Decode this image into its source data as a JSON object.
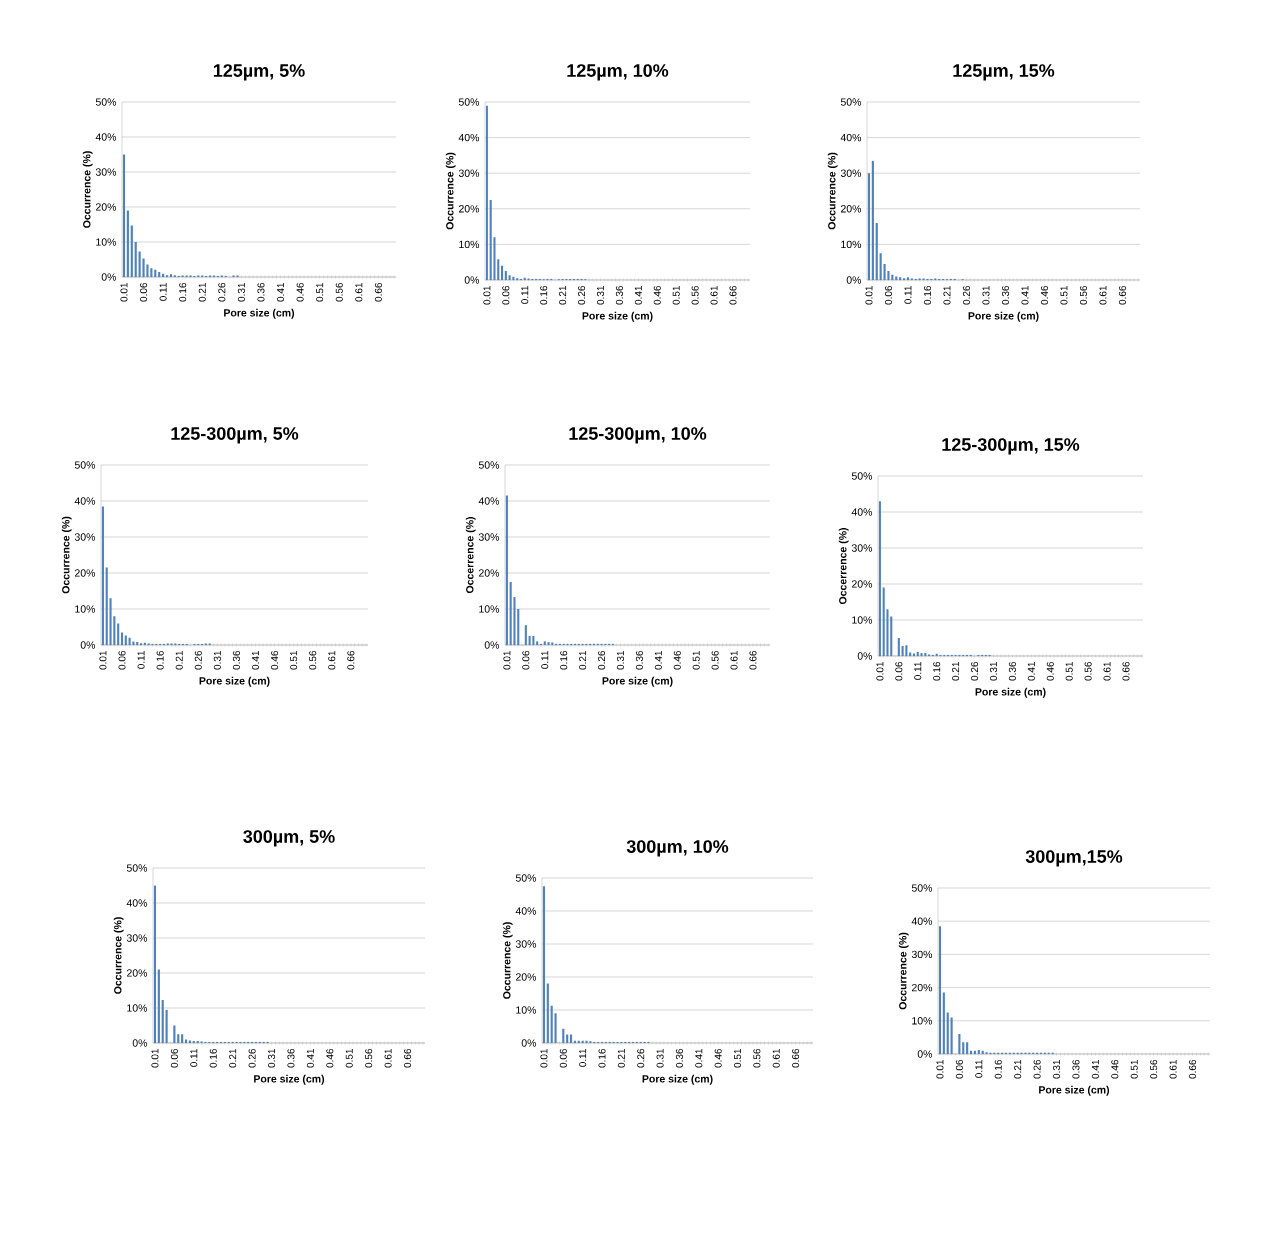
{
  "chart_data": [
    {
      "type": "bar",
      "title": "125µm, 5%",
      "xlabel": "Pore size (cm)",
      "ylabel": "Occurrence (%)",
      "color": "#4f81bd",
      "grid": "y",
      "ylim": [
        0,
        50
      ],
      "yticks": [
        {
          "value": 0,
          "label": "0%"
        },
        {
          "value": 10,
          "label": "10%"
        },
        {
          "value": 20,
          "label": "20%"
        },
        {
          "value": 30,
          "label": "30%"
        },
        {
          "value": 40,
          "label": "40%"
        },
        {
          "value": 50,
          "label": "50%"
        }
      ],
      "categories": [
        "0.01",
        null,
        null,
        null,
        null,
        "0.06",
        null,
        null,
        null,
        null,
        "0.11",
        null,
        null,
        null,
        null,
        "0.16",
        null,
        null,
        null,
        null,
        "0.21",
        null,
        null,
        null,
        null,
        "0.26",
        null,
        null,
        null,
        null,
        "0.31",
        null,
        null,
        null,
        null,
        "0.36",
        null,
        null,
        null,
        null,
        "0.41",
        null,
        null,
        null,
        null,
        "0.46",
        null,
        null,
        null,
        null,
        "0.51",
        null,
        null,
        null,
        null,
        "0.56",
        null,
        null,
        null,
        null,
        "0.61",
        null,
        null,
        null,
        null,
        "0.66",
        null,
        null,
        null,
        null
      ],
      "values": [
        35,
        19,
        14.7,
        10,
        7.3,
        5.3,
        3.6,
        2.5,
        2.1,
        1.4,
        0.9,
        0.5,
        0.8,
        0.5,
        0.3,
        0.4,
        0.4,
        0.4,
        0.3,
        0.4,
        0.4,
        0.3,
        0.4,
        0.4,
        0.3,
        0.4,
        0.3,
        0,
        0.4,
        0.4,
        0,
        0,
        0,
        0,
        0,
        0,
        0,
        0,
        0,
        0,
        0,
        0,
        0,
        0,
        0,
        0,
        0,
        0,
        0,
        0,
        0,
        0,
        0,
        0,
        0,
        0,
        0,
        0,
        0,
        0,
        0,
        0,
        0,
        0,
        0,
        0,
        0,
        0,
        0,
        0
      ]
    },
    {
      "type": "bar",
      "title": "125µm, 10%",
      "xlabel": "Pore size (cm)",
      "ylabel": "Occurrence (%)",
      "color": "#4f81bd",
      "grid": "y",
      "ylim": [
        0,
        50
      ],
      "yticks": [
        {
          "value": 0,
          "label": "0%"
        },
        {
          "value": 10,
          "label": "10%"
        },
        {
          "value": 20,
          "label": "20%"
        },
        {
          "value": 30,
          "label": "30%"
        },
        {
          "value": 40,
          "label": "40%"
        },
        {
          "value": 50,
          "label": "50%"
        }
      ],
      "categories": [
        "0.01",
        null,
        null,
        null,
        null,
        "0.06",
        null,
        null,
        null,
        null,
        "0.11",
        null,
        null,
        null,
        null,
        "0.16",
        null,
        null,
        null,
        null,
        "0.21",
        null,
        null,
        null,
        null,
        "0.26",
        null,
        null,
        null,
        null,
        "0.31",
        null,
        null,
        null,
        null,
        "0.36",
        null,
        null,
        null,
        null,
        "0.41",
        null,
        null,
        null,
        null,
        "0.46",
        null,
        null,
        null,
        null,
        "0.51",
        null,
        null,
        null,
        null,
        "0.56",
        null,
        null,
        null,
        null,
        "0.61",
        null,
        null,
        null,
        null,
        "0.66",
        null,
        null,
        null,
        null
      ],
      "values": [
        49,
        22.5,
        12,
        5.8,
        4,
        2.5,
        1.3,
        0.9,
        0.5,
        0.3,
        0.6,
        0.4,
        0.3,
        0.3,
        0.3,
        0.2,
        0.3,
        0.3,
        0,
        0.2,
        0.3,
        0.3,
        0.3,
        0.3,
        0.3,
        0.3,
        0.2,
        0,
        0,
        0,
        0,
        0,
        0,
        0,
        0,
        0,
        0,
        0,
        0,
        0,
        0,
        0,
        0,
        0,
        0,
        0,
        0,
        0,
        0,
        0,
        0,
        0,
        0,
        0,
        0,
        0,
        0,
        0,
        0,
        0,
        0,
        0,
        0,
        0,
        0,
        0,
        0,
        0,
        0,
        0
      ]
    },
    {
      "type": "bar",
      "title": "125µm, 15%",
      "xlabel": "Pore size (cm)",
      "ylabel": "Occurrence (%)",
      "color": "#4f81bd",
      "grid": "y",
      "ylim": [
        0,
        50
      ],
      "yticks": [
        {
          "value": 0,
          "label": "0%"
        },
        {
          "value": 10,
          "label": "10%"
        },
        {
          "value": 20,
          "label": "20%"
        },
        {
          "value": 30,
          "label": "30%"
        },
        {
          "value": 40,
          "label": "40%"
        },
        {
          "value": 50,
          "label": "50%"
        }
      ],
      "categories": [
        "0.01",
        null,
        null,
        null,
        null,
        "0.06",
        null,
        null,
        null,
        null,
        "0.11",
        null,
        null,
        null,
        null,
        "0.16",
        null,
        null,
        null,
        null,
        "0.21",
        null,
        null,
        null,
        null,
        "0.26",
        null,
        null,
        null,
        null,
        "0.31",
        null,
        null,
        null,
        null,
        "0.36",
        null,
        null,
        null,
        null,
        "0.41",
        null,
        null,
        null,
        null,
        "0.46",
        null,
        null,
        null,
        null,
        "0.51",
        null,
        null,
        null,
        null,
        "0.56",
        null,
        null,
        null,
        null,
        "0.61",
        null,
        null,
        null,
        null,
        "0.66",
        null,
        null,
        null,
        null
      ],
      "values": [
        30,
        33.5,
        16,
        7.5,
        4.5,
        2.5,
        1.5,
        1,
        0.8,
        0.5,
        0.8,
        0.4,
        0.3,
        0.4,
        0.4,
        0.3,
        0.3,
        0.4,
        0.3,
        0.3,
        0.2,
        0.3,
        0.3,
        0,
        0.2,
        0,
        0,
        0,
        0,
        0,
        0,
        0,
        0,
        0,
        0,
        0,
        0,
        0,
        0,
        0,
        0,
        0,
        0,
        0,
        0,
        0,
        0,
        0,
        0,
        0,
        0,
        0,
        0,
        0,
        0,
        0,
        0,
        0,
        0,
        0,
        0,
        0,
        0,
        0,
        0,
        0,
        0,
        0,
        0,
        0
      ]
    },
    {
      "type": "bar",
      "title": "125-300µm, 5%",
      "xlabel": "Pore size (cm)",
      "ylabel": "Occurrence (%)",
      "color": "#4f81bd",
      "grid": "y",
      "ylim": [
        0,
        50
      ],
      "yticks": [
        {
          "value": 0,
          "label": "0%"
        },
        {
          "value": 10,
          "label": "10%"
        },
        {
          "value": 20,
          "label": "20%"
        },
        {
          "value": 30,
          "label": "30%"
        },
        {
          "value": 40,
          "label": "40%"
        },
        {
          "value": 50,
          "label": "50%"
        }
      ],
      "categories": [
        "0.01",
        null,
        null,
        null,
        null,
        "0.06",
        null,
        null,
        null,
        null,
        "0.11",
        null,
        null,
        null,
        null,
        "0.16",
        null,
        null,
        null,
        null,
        "0.21",
        null,
        null,
        null,
        null,
        "0.26",
        null,
        null,
        null,
        null,
        "0.31",
        null,
        null,
        null,
        null,
        "0.36",
        null,
        null,
        null,
        null,
        "0.41",
        null,
        null,
        null,
        null,
        "0.46",
        null,
        null,
        null,
        null,
        "0.51",
        null,
        null,
        null,
        null,
        "0.56",
        null,
        null,
        null,
        null,
        "0.61",
        null,
        null,
        null,
        null,
        "0.66",
        null,
        null,
        null,
        null
      ],
      "values": [
        38.5,
        21.5,
        13,
        8,
        6,
        3.5,
        2.6,
        2,
        1,
        0.8,
        0.5,
        0.6,
        0.4,
        0.3,
        0.3,
        0.3,
        0.3,
        0.4,
        0.4,
        0.4,
        0.3,
        0.3,
        0.3,
        0,
        0.3,
        0.3,
        0.3,
        0.4,
        0.4,
        0,
        0,
        0,
        0,
        0,
        0,
        0,
        0,
        0,
        0,
        0,
        0,
        0,
        0,
        0,
        0,
        0,
        0,
        0,
        0,
        0,
        0,
        0,
        0,
        0,
        0,
        0,
        0,
        0,
        0,
        0,
        0,
        0,
        0,
        0,
        0,
        0,
        0,
        0,
        0,
        0
      ]
    },
    {
      "type": "bar",
      "title": "125-300µm, 10%",
      "xlabel": "Pore size (cm)",
      "ylabel": "Occerrence (%)",
      "color": "#4f81bd",
      "grid": "y",
      "ylim": [
        0,
        50
      ],
      "yticks": [
        {
          "value": 0,
          "label": "0%"
        },
        {
          "value": 10,
          "label": "10%"
        },
        {
          "value": 20,
          "label": "20%"
        },
        {
          "value": 30,
          "label": "30%"
        },
        {
          "value": 40,
          "label": "40%"
        },
        {
          "value": 50,
          "label": "50%"
        }
      ],
      "categories": [
        "0.01",
        null,
        null,
        null,
        null,
        "0.06",
        null,
        null,
        null,
        null,
        "0.11",
        null,
        null,
        null,
        null,
        "0.16",
        null,
        null,
        null,
        null,
        "0.21",
        null,
        null,
        null,
        null,
        "0.26",
        null,
        null,
        null,
        null,
        "0.31",
        null,
        null,
        null,
        null,
        "0.36",
        null,
        null,
        null,
        null,
        "0.41",
        null,
        null,
        null,
        null,
        "0.46",
        null,
        null,
        null,
        null,
        "0.51",
        null,
        null,
        null,
        null,
        "0.56",
        null,
        null,
        null,
        null,
        "0.61",
        null,
        null,
        null,
        null,
        "0.66",
        null,
        null,
        null,
        null
      ],
      "values": [
        41.5,
        17.5,
        13.3,
        10,
        0,
        5.5,
        2.5,
        2.5,
        1,
        0.3,
        1,
        0.8,
        0.7,
        0.3,
        0.3,
        0.3,
        0.3,
        0.3,
        0.3,
        0.3,
        0.3,
        0.3,
        0.3,
        0.3,
        0.3,
        0.3,
        0.3,
        0.3,
        0.3,
        0,
        0,
        0,
        0,
        0,
        0,
        0,
        0,
        0,
        0,
        0,
        0,
        0,
        0,
        0,
        0,
        0,
        0,
        0,
        0,
        0,
        0,
        0,
        0,
        0,
        0,
        0,
        0,
        0,
        0,
        0,
        0,
        0,
        0,
        0,
        0,
        0,
        0,
        0,
        0,
        0
      ]
    },
    {
      "type": "bar",
      "title": "125-300µm, 15%",
      "xlabel": "Pore size (cm)",
      "ylabel": "Occerrence (%)",
      "color": "#4f81bd",
      "grid": "y",
      "ylim": [
        0,
        50
      ],
      "yticks": [
        {
          "value": 0,
          "label": "0%"
        },
        {
          "value": 10,
          "label": "10%"
        },
        {
          "value": 20,
          "label": "20%"
        },
        {
          "value": 30,
          "label": "30%"
        },
        {
          "value": 40,
          "label": "40%"
        },
        {
          "value": 50,
          "label": "50%"
        }
      ],
      "categories": [
        "0.01",
        null,
        null,
        null,
        null,
        "0.06",
        null,
        null,
        null,
        null,
        "0.11",
        null,
        null,
        null,
        null,
        "0.16",
        null,
        null,
        null,
        null,
        "0.21",
        null,
        null,
        null,
        null,
        "0.26",
        null,
        null,
        null,
        null,
        "0.31",
        null,
        null,
        null,
        null,
        "0.36",
        null,
        null,
        null,
        null,
        "0.41",
        null,
        null,
        null,
        null,
        "0.46",
        null,
        null,
        null,
        null,
        "0.51",
        null,
        null,
        null,
        null,
        "0.56",
        null,
        null,
        null,
        null,
        "0.61",
        null,
        null,
        null,
        null,
        "0.66",
        null,
        null,
        null,
        null
      ],
      "values": [
        43,
        19,
        13,
        11,
        0,
        5,
        2.8,
        3,
        1,
        0.7,
        1.1,
        0.8,
        0.8,
        0.4,
        0.3,
        0.6,
        0.3,
        0.3,
        0.3,
        0.3,
        0.3,
        0.3,
        0.3,
        0.3,
        0.3,
        0,
        0.3,
        0.3,
        0.3,
        0.3,
        0,
        0,
        0,
        0,
        0,
        0,
        0,
        0,
        0,
        0,
        0,
        0,
        0,
        0,
        0,
        0,
        0,
        0,
        0,
        0,
        0,
        0,
        0,
        0,
        0,
        0,
        0,
        0,
        0,
        0,
        0,
        0,
        0,
        0,
        0,
        0,
        0,
        0,
        0,
        0
      ]
    },
    {
      "type": "bar",
      "title": "300µm, 5%",
      "xlabel": "Pore size (cm)",
      "ylabel": "Occurrence (%)",
      "color": "#4f81bd",
      "grid": "y",
      "ylim": [
        0,
        50
      ],
      "yticks": [
        {
          "value": 0,
          "label": "0%"
        },
        {
          "value": 10,
          "label": "10%"
        },
        {
          "value": 20,
          "label": "20%"
        },
        {
          "value": 30,
          "label": "30%"
        },
        {
          "value": 40,
          "label": "40%"
        },
        {
          "value": 50,
          "label": "50%"
        }
      ],
      "categories": [
        "0.01",
        null,
        null,
        null,
        null,
        "0.06",
        null,
        null,
        null,
        null,
        "0.11",
        null,
        null,
        null,
        null,
        "0.16",
        null,
        null,
        null,
        null,
        "0.21",
        null,
        null,
        null,
        null,
        "0.26",
        null,
        null,
        null,
        null,
        "0.31",
        null,
        null,
        null,
        null,
        "0.36",
        null,
        null,
        null,
        null,
        "0.41",
        null,
        null,
        null,
        null,
        "0.46",
        null,
        null,
        null,
        null,
        "0.51",
        null,
        null,
        null,
        null,
        "0.56",
        null,
        null,
        null,
        null,
        "0.61",
        null,
        null,
        null,
        null,
        "0.66",
        null,
        null,
        null,
        null
      ],
      "values": [
        45,
        21,
        12.3,
        9.4,
        0,
        5,
        2.5,
        2.5,
        1,
        0.7,
        0.6,
        0.6,
        0.4,
        0.3,
        0.3,
        0.3,
        0.3,
        0.3,
        0.3,
        0.3,
        0.3,
        0.3,
        0.3,
        0.3,
        0.3,
        0.3,
        0.3,
        0.3,
        0.3,
        0.3,
        0,
        0,
        0,
        0,
        0,
        0,
        0,
        0,
        0,
        0,
        0,
        0,
        0,
        0,
        0,
        0,
        0,
        0,
        0,
        0,
        0,
        0,
        0,
        0,
        0,
        0,
        0,
        0,
        0,
        0,
        0,
        0,
        0,
        0,
        0,
        0,
        0,
        0,
        0,
        0
      ]
    },
    {
      "type": "bar",
      "title": "300µm, 10%",
      "xlabel": "Pore size (cm)",
      "ylabel": "Occurrence (%)",
      "color": "#4f81bd",
      "grid": "y",
      "ylim": [
        0,
        50
      ],
      "yticks": [
        {
          "value": 0,
          "label": "0%"
        },
        {
          "value": 10,
          "label": "10%"
        },
        {
          "value": 20,
          "label": "20%"
        },
        {
          "value": 30,
          "label": "30%"
        },
        {
          "value": 40,
          "label": "40%"
        },
        {
          "value": 50,
          "label": "50%"
        }
      ],
      "categories": [
        "0.01",
        null,
        null,
        null,
        null,
        "0.06",
        null,
        null,
        null,
        null,
        "0.11",
        null,
        null,
        null,
        null,
        "0.16",
        null,
        null,
        null,
        null,
        "0.21",
        null,
        null,
        null,
        null,
        "0.26",
        null,
        null,
        null,
        null,
        "0.31",
        null,
        null,
        null,
        null,
        "0.36",
        null,
        null,
        null,
        null,
        "0.41",
        null,
        null,
        null,
        null,
        "0.46",
        null,
        null,
        null,
        null,
        "0.51",
        null,
        null,
        null,
        null,
        "0.56",
        null,
        null,
        null,
        null,
        "0.61",
        null,
        null,
        null,
        null,
        "0.66",
        null,
        null,
        null,
        null
      ],
      "values": [
        47.5,
        18,
        11.3,
        9,
        0,
        4.3,
        2.6,
        2.6,
        0.7,
        0.7,
        0.7,
        0.7,
        0.5,
        0.3,
        0.3,
        0.3,
        0.3,
        0.3,
        0.3,
        0.3,
        0.3,
        0.3,
        0.3,
        0.3,
        0.3,
        0.3,
        0.3,
        0.3,
        0,
        0,
        0,
        0,
        0,
        0,
        0,
        0,
        0,
        0,
        0,
        0,
        0,
        0,
        0,
        0,
        0,
        0,
        0,
        0,
        0,
        0,
        0,
        0,
        0,
        0,
        0,
        0,
        0,
        0,
        0,
        0,
        0,
        0,
        0,
        0,
        0,
        0,
        0,
        0,
        0,
        0
      ]
    },
    {
      "type": "bar",
      "title": "300µm,15%",
      "xlabel": "Pore size (cm)",
      "ylabel": "Occurrence (%)",
      "color": "#4f81bd",
      "grid": "y",
      "ylim": [
        0,
        50
      ],
      "yticks": [
        {
          "value": 0,
          "label": "0%"
        },
        {
          "value": 10,
          "label": "10%"
        },
        {
          "value": 20,
          "label": "20%"
        },
        {
          "value": 30,
          "label": "30%"
        },
        {
          "value": 40,
          "label": "40%"
        },
        {
          "value": 50,
          "label": "50%"
        }
      ],
      "categories": [
        "0.01",
        null,
        null,
        null,
        null,
        "0.06",
        null,
        null,
        null,
        null,
        "0.11",
        null,
        null,
        null,
        null,
        "0.16",
        null,
        null,
        null,
        null,
        "0.21",
        null,
        null,
        null,
        null,
        "0.26",
        null,
        null,
        null,
        null,
        "0.31",
        null,
        null,
        null,
        null,
        "0.36",
        null,
        null,
        null,
        null,
        "0.41",
        null,
        null,
        null,
        null,
        "0.46",
        null,
        null,
        null,
        null,
        "0.51",
        null,
        null,
        null,
        null,
        "0.56",
        null,
        null,
        null,
        null,
        "0.61",
        null,
        null,
        null,
        null,
        "0.66",
        null,
        null,
        null,
        null
      ],
      "values": [
        38.5,
        18.5,
        12.5,
        11,
        0,
        6,
        3.5,
        3.5,
        1,
        1,
        1.2,
        1,
        0.5,
        0.4,
        0.4,
        0.4,
        0.4,
        0.4,
        0.4,
        0.4,
        0.4,
        0.4,
        0.4,
        0.4,
        0.4,
        0.4,
        0.4,
        0.4,
        0.4,
        0.4,
        0,
        0,
        0,
        0,
        0,
        0,
        0,
        0,
        0,
        0,
        0,
        0,
        0,
        0,
        0,
        0,
        0,
        0,
        0,
        0,
        0,
        0,
        0,
        0,
        0,
        0,
        0,
        0,
        0,
        0,
        0,
        0,
        0,
        0,
        0,
        0,
        0,
        0,
        0,
        0
      ]
    }
  ]
}
